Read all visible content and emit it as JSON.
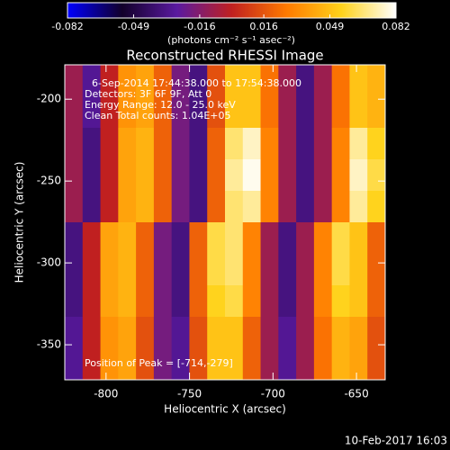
{
  "chart_data": {
    "type": "heatmap",
    "title": "Reconstructed RHESSI Image",
    "colorbar_label": "(photons cm⁻² s⁻¹ asec⁻²)",
    "colorbar_ticks": [
      -0.082,
      -0.049,
      -0.016,
      0.016,
      0.049,
      0.082
    ],
    "zlim": [
      -0.082,
      0.082
    ],
    "colormap": [
      "#0000ff",
      "#12002a",
      "#5a1aa0",
      "#c02020",
      "#ff7a00",
      "#ffd21a",
      "#ffffff"
    ],
    "x_label": "Heliocentric X (arcsec)",
    "y_label": "Heliocentric Y (arcsec)",
    "xlim": [
      -824.7,
      -632.8
    ],
    "xticks": [
      -800,
      -750,
      -700,
      -650
    ],
    "ylim": [
      -371.4,
      -179
    ],
    "yticks": [
      -200,
      -250,
      -300,
      -350
    ],
    "annotations": [
      "6-Sep-2014 17:44:38.000 to 17:54:38.000",
      "Detectors: 3F 6F 9F, Att 0",
      "Energy Range: 12.0 - 25.0 keV",
      "Clean     Total counts: 1.04E+05"
    ],
    "peak_label": "Position of Peak = [-714,-279]",
    "footer": "10-Feb-2017 16:03",
    "z": [
      [
        -0.01,
        -0.03,
        0.0,
        0.035,
        0.04,
        0.02,
        -0.02,
        -0.035,
        0.015,
        0.05,
        0.05,
        0.025,
        -0.01,
        -0.035,
        -0.01,
        0.025,
        0.05,
        0.045
      ],
      [
        -0.01,
        -0.03,
        0.0,
        0.035,
        0.04,
        0.02,
        -0.02,
        -0.035,
        0.015,
        0.05,
        0.05,
        0.025,
        -0.01,
        -0.035,
        -0.01,
        0.025,
        0.05,
        0.045
      ],
      [
        -0.01,
        -0.035,
        0.0,
        0.04,
        0.045,
        0.02,
        -0.02,
        -0.035,
        0.02,
        0.065,
        0.075,
        0.03,
        -0.01,
        -0.035,
        -0.01,
        0.03,
        0.07,
        0.055
      ],
      [
        -0.01,
        -0.035,
        0.0,
        0.04,
        0.045,
        0.02,
        -0.02,
        -0.035,
        0.02,
        0.07,
        0.08,
        0.03,
        -0.01,
        -0.035,
        -0.01,
        0.03,
        0.075,
        0.06
      ],
      [
        -0.01,
        -0.035,
        0.0,
        0.04,
        0.045,
        0.02,
        -0.02,
        -0.035,
        0.02,
        0.065,
        0.07,
        0.03,
        -0.01,
        -0.035,
        -0.01,
        0.03,
        0.07,
        0.055
      ],
      [
        -0.035,
        0.0,
        0.04,
        0.045,
        0.02,
        -0.02,
        -0.035,
        0.02,
        0.06,
        0.065,
        0.03,
        -0.01,
        -0.035,
        -0.01,
        0.03,
        0.06,
        0.05,
        0.02
      ],
      [
        -0.035,
        0.0,
        0.04,
        0.045,
        0.02,
        -0.02,
        -0.035,
        0.02,
        0.06,
        0.065,
        0.03,
        -0.01,
        -0.035,
        -0.01,
        0.03,
        0.06,
        0.05,
        0.02
      ],
      [
        -0.035,
        0.0,
        0.04,
        0.045,
        0.02,
        -0.02,
        -0.035,
        0.02,
        0.055,
        0.06,
        0.03,
        -0.01,
        -0.035,
        -0.01,
        0.03,
        0.055,
        0.05,
        0.02
      ],
      [
        -0.03,
        0.0,
        0.035,
        0.04,
        0.015,
        -0.02,
        -0.03,
        0.015,
        0.05,
        0.05,
        0.02,
        -0.01,
        -0.03,
        -0.01,
        0.025,
        0.045,
        0.04,
        0.015
      ],
      [
        -0.03,
        0.0,
        0.035,
        0.04,
        0.015,
        -0.02,
        -0.03,
        0.015,
        0.05,
        0.05,
        0.02,
        -0.01,
        -0.03,
        -0.01,
        0.025,
        0.045,
        0.04,
        0.015
      ]
    ]
  }
}
